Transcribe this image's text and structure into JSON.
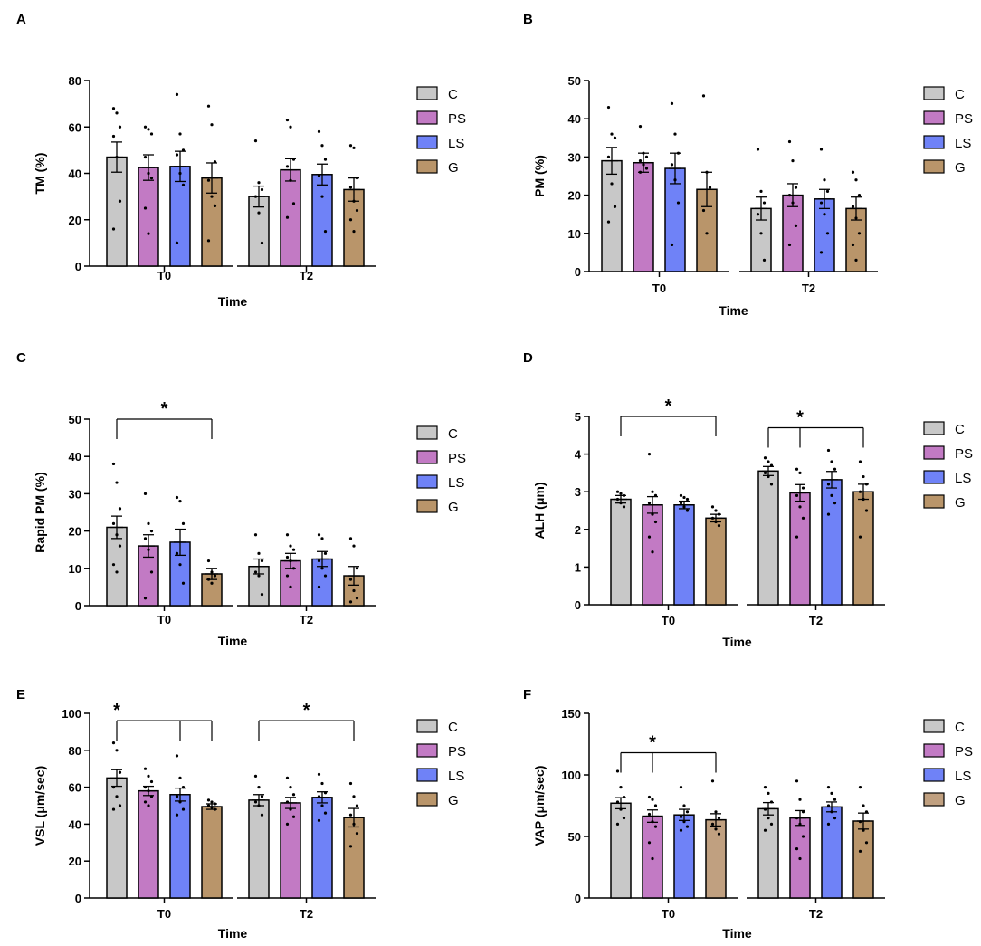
{
  "legend_labels": [
    "C",
    "PS",
    "LS",
    "G"
  ],
  "colors": {
    "C": "#c8c8c8",
    "PS": "#c27ac4",
    "LS": "#6f82f7",
    "G": "#b9956a",
    "G_alt": "#c0a080"
  },
  "chart_data": [
    {
      "panel": "A",
      "type": "bar",
      "ylabel": "TM (%)",
      "xlabel": "Time",
      "categories": [
        "T0",
        "T2"
      ],
      "ylim": [
        0,
        80
      ],
      "yticks": [
        0,
        20,
        40,
        60,
        80
      ],
      "series": [
        {
          "name": "C",
          "values": [
            47,
            30
          ],
          "sem": [
            6.5,
            4.5
          ],
          "points": [
            [
              68,
              66,
              60,
              56,
              47,
              28,
              16
            ],
            [
              54,
              36,
              33,
              30,
              23,
              10
            ]
          ]
        },
        {
          "name": "PS",
          "values": [
            42.5,
            41.5
          ],
          "sem": [
            5.5,
            4.8
          ],
          "points": [
            [
              60,
              59,
              57,
              47,
              40,
              38,
              25,
              14
            ],
            [
              63,
              60,
              46,
              43,
              37,
              27,
              21
            ]
          ]
        },
        {
          "name": "LS",
          "values": [
            43,
            39.5
          ],
          "sem": [
            6.5,
            4.5
          ],
          "points": [
            [
              74,
              57,
              50,
              48,
              40,
              35,
              10
            ],
            [
              58,
              52,
              46,
              39,
              30,
              15
            ]
          ]
        },
        {
          "name": "G",
          "values": [
            38,
            33
          ],
          "sem": [
            6.5,
            5
          ],
          "points": [
            [
              69,
              61,
              45,
              37,
              30,
              26,
              11
            ],
            [
              52,
              51,
              38,
              34,
              28,
              24,
              20,
              15
            ]
          ]
        }
      ],
      "significance": []
    },
    {
      "panel": "B",
      "type": "bar",
      "ylabel": "PM (%)",
      "xlabel": "Time",
      "categories": [
        "T0",
        "T2"
      ],
      "ylim": [
        0,
        50
      ],
      "yticks": [
        0,
        10,
        20,
        30,
        40,
        50
      ],
      "series": [
        {
          "name": "C",
          "values": [
            29,
            16.5
          ],
          "sem": [
            3.5,
            3
          ],
          "points": [
            [
              43,
              36,
              35,
              30,
              23,
              17,
              13
            ],
            [
              32,
              21,
              18,
              15,
              10,
              3
            ]
          ]
        },
        {
          "name": "PS",
          "values": [
            28.5,
            20
          ],
          "sem": [
            2.5,
            3
          ],
          "points": [
            [
              38,
              31,
              30,
              29,
              28,
              27,
              26
            ],
            [
              34,
              29,
              22,
              20,
              18,
              12,
              7
            ]
          ]
        },
        {
          "name": "LS",
          "values": [
            27,
            19
          ],
          "sem": [
            4,
            2.5
          ],
          "points": [
            [
              44,
              36,
              31,
              28,
              24,
              18,
              7
            ],
            [
              32,
              24,
              21,
              18,
              15,
              10,
              5
            ]
          ]
        },
        {
          "name": "G",
          "values": [
            21.5,
            16.5
          ],
          "sem": [
            4.5,
            3
          ],
          "points": [
            [
              46,
              26,
              22,
              16,
              10
            ],
            [
              26,
              24,
              20,
              17,
              14,
              10,
              7,
              3
            ]
          ]
        }
      ],
      "significance": []
    },
    {
      "panel": "C",
      "type": "bar",
      "ylabel": "Rapid PM (%)",
      "xlabel": "Time",
      "categories": [
        "T0",
        "T2"
      ],
      "ylim": [
        0,
        50
      ],
      "yticks": [
        0,
        10,
        20,
        30,
        40,
        50
      ],
      "series": [
        {
          "name": "C",
          "values": [
            21,
            10.5
          ],
          "sem": [
            3,
            2
          ],
          "points": [
            [
              38,
              33,
              26,
              22,
              19,
              16,
              11,
              9
            ],
            [
              19,
              14,
              12,
              9,
              8,
              3
            ]
          ]
        },
        {
          "name": "PS",
          "values": [
            16,
            12
          ],
          "sem": [
            3,
            2
          ],
          "points": [
            [
              30,
              22,
              20,
              18,
              15,
              9,
              2
            ],
            [
              19,
              16,
              15,
              13,
              12,
              10,
              8,
              5
            ]
          ]
        },
        {
          "name": "LS",
          "values": [
            17,
            12.5
          ],
          "sem": [
            3.5,
            2
          ],
          "points": [
            [
              29,
              28,
              22,
              14,
              11,
              6
            ],
            [
              19,
              18,
              14,
              12,
              10,
              8,
              5
            ]
          ]
        },
        {
          "name": "G",
          "values": [
            8.5,
            8
          ],
          "sem": [
            1.5,
            2.5
          ],
          "points": [
            [
              12,
              9,
              8,
              7,
              6
            ],
            [
              18,
              16,
              10,
              7,
              4,
              2,
              1
            ]
          ]
        }
      ],
      "significance": [
        {
          "label": "*",
          "group": "T0",
          "from": "C",
          "to": [
            "G"
          ],
          "y": 50
        }
      ]
    },
    {
      "panel": "D",
      "type": "bar",
      "ylabel": "ALH (μm)",
      "xlabel": "Time",
      "categories": [
        "T0",
        "T2"
      ],
      "ylim": [
        0,
        5
      ],
      "yticks": [
        0,
        1,
        2,
        3,
        4,
        5
      ],
      "series": [
        {
          "name": "C",
          "values": [
            2.8,
            3.55
          ],
          "sem": [
            0.1,
            0.12
          ],
          "points": [
            [
              3.0,
              2.95,
              2.9,
              2.8,
              2.7,
              2.6
            ],
            [
              3.9,
              3.8,
              3.7,
              3.5,
              3.4,
              3.2
            ]
          ]
        },
        {
          "name": "PS",
          "values": [
            2.65,
            2.97
          ],
          "sem": [
            0.22,
            0.22
          ],
          "points": [
            [
              4.0,
              3.0,
              2.9,
              2.7,
              2.4,
              2.2,
              1.8,
              1.4
            ],
            [
              3.6,
              3.5,
              3.1,
              2.9,
              2.6,
              2.3,
              1.8
            ]
          ]
        },
        {
          "name": "LS",
          "values": [
            2.65,
            3.32
          ],
          "sem": [
            0.1,
            0.22
          ],
          "points": [
            [
              2.9,
              2.85,
              2.8,
              2.7,
              2.6,
              2.5
            ],
            [
              4.1,
              3.8,
              3.6,
              3.2,
              2.9,
              2.7,
              2.4
            ]
          ]
        },
        {
          "name": "G",
          "values": [
            2.3,
            3.0
          ],
          "sem": [
            0.1,
            0.2
          ],
          "points": [
            [
              2.6,
              2.5,
              2.4,
              2.3,
              2.2,
              2.1
            ],
            [
              3.8,
              3.4,
              3.2,
              3.0,
              2.8,
              2.5,
              1.8
            ]
          ]
        }
      ],
      "significance": [
        {
          "label": "*",
          "group": "T0",
          "from": "C",
          "to": [
            "G"
          ],
          "y": 5
        },
        {
          "label": "*",
          "group": "T2",
          "from": "PS",
          "to": [
            "C",
            "G"
          ],
          "y": 4.7
        }
      ]
    },
    {
      "panel": "E",
      "type": "bar",
      "ylabel": "VSL (μm/sec)",
      "xlabel": "Time",
      "categories": [
        "T0",
        "T2"
      ],
      "ylim": [
        0,
        100
      ],
      "yticks": [
        0,
        20,
        40,
        60,
        80,
        100
      ],
      "series": [
        {
          "name": "C",
          "values": [
            65,
            53
          ],
          "sem": [
            4.5,
            3
          ],
          "points": [
            [
              84,
              80,
              68,
              60,
              55,
              50,
              48
            ],
            [
              66,
              60,
              55,
              52,
              50,
              45
            ]
          ]
        },
        {
          "name": "PS",
          "values": [
            58,
            51.5
          ],
          "sem": [
            2.5,
            3
          ],
          "points": [
            [
              70,
              66,
              63,
              60,
              58,
              55,
              52,
              50
            ],
            [
              65,
              60,
              56,
              52,
              48,
              44,
              40
            ]
          ]
        },
        {
          "name": "LS",
          "values": [
            56,
            54.5
          ],
          "sem": [
            3.5,
            3
          ],
          "points": [
            [
              77,
              65,
              60,
              55,
              52,
              48,
              45
            ],
            [
              67,
              62,
              57,
              55,
              50,
              46,
              42
            ]
          ]
        },
        {
          "name": "G",
          "values": [
            49.5,
            43.5
          ],
          "sem": [
            1.5,
            5
          ],
          "points": [
            [
              53,
              52,
              51,
              50,
              49,
              48
            ],
            [
              62,
              55,
              50,
              45,
              40,
              35,
              28
            ]
          ]
        }
      ],
      "significance": [
        {
          "label": "*",
          "group": "T0",
          "from": "C",
          "to": [
            "LS",
            "G"
          ],
          "y": 96
        },
        {
          "label": "*",
          "group": "T2",
          "from": "C",
          "to": [
            "G"
          ],
          "y": 96
        }
      ]
    },
    {
      "panel": "F",
      "type": "bar",
      "ylabel": "VAP (μm/sec)",
      "xlabel": "Time",
      "categories": [
        "T0",
        "T2"
      ],
      "ylim": [
        0,
        150
      ],
      "yticks": [
        0,
        50,
        100,
        150
      ],
      "series": [
        {
          "name": "C",
          "values": [
            77,
            72.5
          ],
          "sem": [
            4.5,
            5
          ],
          "points": [
            [
              103,
              90,
              82,
              78,
              72,
              65,
              60
            ],
            [
              90,
              85,
              78,
              72,
              65,
              60,
              55
            ]
          ]
        },
        {
          "name": "PS",
          "values": [
            66.5,
            65
          ],
          "sem": [
            5,
            6
          ],
          "points": [
            [
              82,
              80,
              75,
              68,
              62,
              58,
              45,
              32
            ],
            [
              95,
              80,
              70,
              65,
              60,
              50,
              40,
              32
            ]
          ]
        },
        {
          "name": "LS",
          "values": [
            67.5,
            74
          ],
          "sem": [
            4.5,
            4
          ],
          "points": [
            [
              90,
              75,
              70,
              66,
              62,
              58,
              55
            ],
            [
              90,
              85,
              80,
              75,
              70,
              65,
              60
            ]
          ]
        },
        {
          "name": "G",
          "values": [
            63.5,
            62.5
          ],
          "sem": [
            5,
            6.5
          ],
          "points": [
            [
              95,
              70,
              65,
              60,
              56,
              52
            ],
            [
              90,
              75,
              70,
              62,
              55,
              45,
              38
            ]
          ]
        }
      ],
      "significance": [
        {
          "label": "*",
          "group": "T0",
          "from": "PS",
          "to": [
            "C",
            "G"
          ],
          "y": 118
        }
      ]
    }
  ]
}
